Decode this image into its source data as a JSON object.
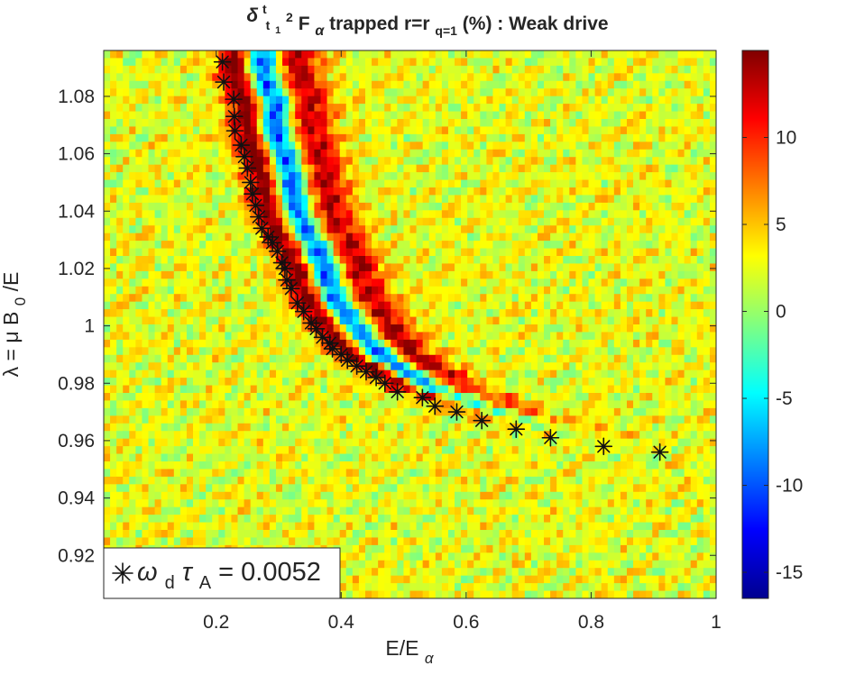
{
  "chart_data": {
    "type": "heatmap",
    "title": {
      "symbol": "δ",
      "sup": "t",
      "sub_t": "t",
      "sub_index": "1",
      "sup_2": "2",
      "base": "F",
      "base_sub": "α",
      "rest": " trapped r=r",
      "rsub": "q=1",
      "tail": " (%) : Weak drive"
    },
    "xlabel": {
      "main": "E/E",
      "sub": "α"
    },
    "ylabel": {
      "main": "λ = μ B",
      "sub": "0",
      "tail": " /E"
    },
    "xlim": [
      0.02,
      1.0
    ],
    "ylim": [
      0.905,
      1.096
    ],
    "x_ticks": [
      0.2,
      0.4,
      0.6,
      0.8,
      1.0
    ],
    "x_tick_labels": [
      "0.2",
      "0.4",
      "0.6",
      "0.8",
      "1"
    ],
    "y_ticks": [
      0.92,
      0.94,
      0.96,
      0.98,
      1.0,
      1.02,
      1.04,
      1.06,
      1.08
    ],
    "y_tick_labels": [
      "0.92",
      "0.94",
      "0.96",
      "0.98",
      "1",
      "1.02",
      "1.04",
      "1.06",
      "1.08"
    ],
    "colorbar": {
      "clim": [
        -16.5,
        15
      ],
      "ticks": [
        -15,
        -10,
        -5,
        0,
        5,
        10
      ],
      "tick_labels": [
        "-15",
        "-10",
        "-5",
        "0",
        "5",
        "10"
      ],
      "colormap": "jet"
    },
    "features": [
      {
        "name": "positive ridge (inner)",
        "peak_value": 14,
        "offset_x": 0.02,
        "width": 0.028
      },
      {
        "name": "negative trough",
        "peak_value": -14,
        "offset_x": 0.065,
        "width": 0.028
      },
      {
        "name": "positive ridge (outer)",
        "peak_value": 11,
        "offset_x": 0.12,
        "width": 0.038
      }
    ],
    "series": [
      {
        "name": "resonance",
        "marker": "asterisk",
        "x": [
          0.21,
          0.212,
          0.228,
          0.229,
          0.23,
          0.24,
          0.245,
          0.25,
          0.255,
          0.258,
          0.263,
          0.268,
          0.273,
          0.283,
          0.29,
          0.298,
          0.305,
          0.31,
          0.313,
          0.32,
          0.33,
          0.34,
          0.352,
          0.36,
          0.37,
          0.382,
          0.386,
          0.4,
          0.41,
          0.425,
          0.44,
          0.456,
          0.47,
          0.49,
          0.53,
          0.55,
          0.585,
          0.625,
          0.68,
          0.735,
          0.82,
          0.91
        ],
        "y": [
          1.092,
          1.085,
          1.079,
          1.073,
          1.068,
          1.063,
          1.059,
          1.055,
          1.05,
          1.046,
          1.042,
          1.038,
          1.034,
          1.031,
          1.029,
          1.026,
          1.022,
          1.02,
          1.016,
          1.013,
          1.008,
          1.005,
          1.001,
          0.999,
          0.996,
          0.994,
          0.992,
          0.99,
          0.988,
          0.986,
          0.984,
          0.982,
          0.98,
          0.977,
          0.975,
          0.972,
          0.97,
          0.967,
          0.964,
          0.961,
          0.958,
          0.956
        ]
      }
    ],
    "legend": {
      "position": "bottom-left",
      "label": {
        "omega": "ω",
        "omega_sub": "d",
        "tau": "τ",
        "tau_sub": "A",
        "value": " = 0.0052"
      }
    }
  }
}
